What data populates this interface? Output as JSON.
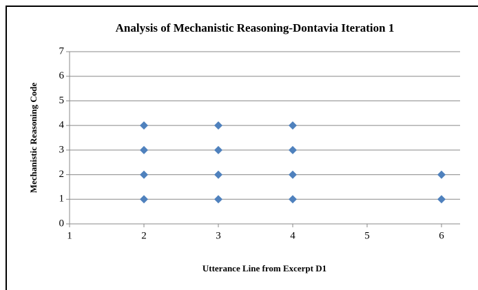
{
  "chart_data": {
    "type": "scatter",
    "title": "Analysis of  Mechanistic Reasoning-Dontavia Iteration 1",
    "x_label": "Utterance Line from Excerpt D1",
    "y_label": "Mechanistic Reasoning Code",
    "x": [
      2,
      2,
      2,
      2,
      3,
      3,
      3,
      3,
      4,
      4,
      4,
      4,
      6,
      6
    ],
    "values": [
      1,
      2,
      3,
      4,
      1,
      2,
      3,
      4,
      1,
      2,
      3,
      4,
      1,
      2
    ],
    "color": "#4f81bd",
    "xlim": [
      1,
      6.25
    ],
    "xticks": [
      1,
      2,
      3,
      4,
      5,
      6
    ],
    "ylim": [
      0,
      7
    ],
    "yticks": [
      0,
      1,
      2,
      3,
      4,
      5,
      6,
      7
    ],
    "grid": true
  }
}
